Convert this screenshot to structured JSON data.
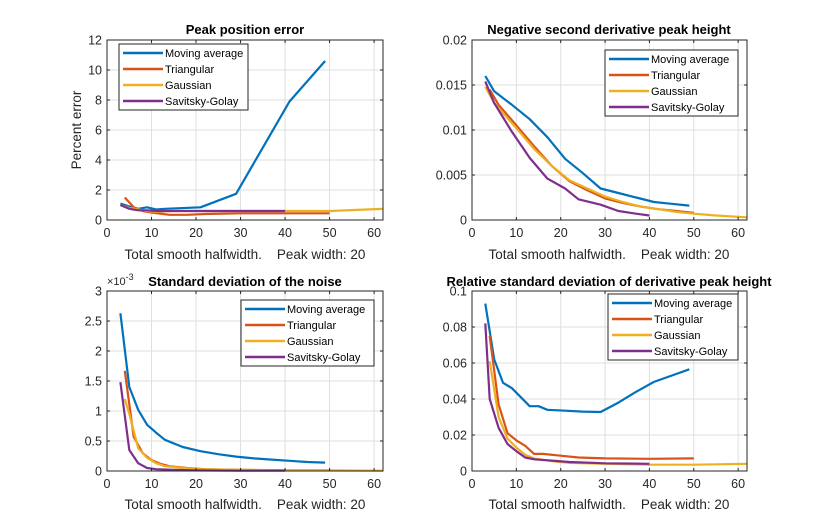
{
  "figure": {
    "series_colors": {
      "Moving average": "#0072BD",
      "Triangular": "#D95319",
      "Gaussian": "#EDB120",
      "Savitsky-Golay": "#7E2F8E"
    }
  },
  "chart_data": [
    {
      "type": "line",
      "title": "Peak position error",
      "xlabel": "Total smooth halfwidth.    Peak width: 20",
      "ylabel": "Percent error",
      "xlim": [
        0,
        62
      ],
      "ylim": [
        0,
        12
      ],
      "xticks": [
        0,
        10,
        20,
        30,
        40,
        50,
        60
      ],
      "yticks": [
        0,
        2,
        4,
        6,
        8,
        10,
        12
      ],
      "ytick_labels": [
        "0",
        "2",
        "4",
        "6",
        "8",
        "10",
        "12"
      ],
      "exponent_label": "",
      "grid": true,
      "legend": [
        "Moving average",
        "Triangular",
        "Gaussian",
        "Savitsky-Golay"
      ],
      "legend_location": "top-left",
      "series": [
        {
          "name": "Moving average",
          "x": [
            3,
            5,
            7,
            9,
            11,
            13,
            21,
            29,
            41,
            49
          ],
          "y": [
            1.1,
            0.9,
            0.75,
            0.85,
            0.7,
            0.75,
            0.85,
            1.75,
            7.9,
            10.6
          ]
        },
        {
          "name": "Triangular",
          "x": [
            4,
            6,
            8,
            10,
            14,
            18,
            22,
            30,
            40,
            50
          ],
          "y": [
            1.5,
            0.85,
            0.6,
            0.5,
            0.35,
            0.35,
            0.4,
            0.45,
            0.45,
            0.45
          ]
        },
        {
          "name": "Gaussian",
          "x": [
            3,
            5,
            7,
            9,
            11,
            15,
            20,
            30,
            40,
            50,
            62
          ],
          "y": [
            1.0,
            0.8,
            0.7,
            0.6,
            0.55,
            0.6,
            0.6,
            0.6,
            0.6,
            0.6,
            0.75
          ]
        },
        {
          "name": "Savitsky-Golay",
          "x": [
            3,
            5,
            7,
            9,
            11,
            15,
            20,
            30,
            40
          ],
          "y": [
            1.0,
            0.75,
            0.65,
            0.65,
            0.6,
            0.6,
            0.6,
            0.6,
            0.6
          ]
        }
      ]
    },
    {
      "type": "line",
      "title": "Negative second derivative peak height",
      "xlabel": "Total smooth halfwidth.    Peak width: 20",
      "ylabel": "",
      "xlim": [
        0,
        62
      ],
      "ylim": [
        0,
        0.02
      ],
      "xticks": [
        0,
        10,
        20,
        30,
        40,
        50,
        60
      ],
      "yticks": [
        0,
        0.005,
        0.01,
        0.015,
        0.02
      ],
      "ytick_labels": [
        "0",
        "0.005",
        "0.01",
        "0.015",
        "0.02"
      ],
      "exponent_label": "",
      "grid": true,
      "legend": [
        "Moving average",
        "Triangular",
        "Gaussian",
        "Savitsky-Golay"
      ],
      "legend_location": "top-right",
      "series": [
        {
          "name": "Moving average",
          "x": [
            3,
            5,
            9,
            13,
            17,
            21,
            25,
            29,
            33,
            37,
            41,
            45,
            49
          ],
          "y": [
            0.016,
            0.0143,
            0.0128,
            0.0112,
            0.0092,
            0.0068,
            0.0052,
            0.0035,
            0.003,
            0.0025,
            0.002,
            0.0018,
            0.0016
          ]
        },
        {
          "name": "Triangular",
          "x": [
            4,
            6,
            10,
            14,
            18,
            22,
            26,
            30,
            34,
            38,
            42,
            46,
            50
          ],
          "y": [
            0.0145,
            0.0128,
            0.0105,
            0.0082,
            0.006,
            0.0043,
            0.0033,
            0.0024,
            0.0019,
            0.0015,
            0.0012,
            0.001,
            0.0008
          ]
        },
        {
          "name": "Gaussian",
          "x": [
            3,
            5,
            10,
            14,
            18,
            22,
            26,
            30,
            34,
            38,
            42,
            46,
            50,
            55,
            62
          ],
          "y": [
            0.0148,
            0.013,
            0.0102,
            0.0079,
            0.006,
            0.0044,
            0.0035,
            0.0026,
            0.002,
            0.0015,
            0.0012,
            0.0009,
            0.0007,
            0.0005,
            0.0003
          ]
        },
        {
          "name": "Savitsky-Golay",
          "x": [
            3,
            5,
            9,
            13,
            17,
            21,
            24,
            29,
            33,
            37,
            40
          ],
          "y": [
            0.0154,
            0.013,
            0.0098,
            0.0069,
            0.0046,
            0.0035,
            0.0023,
            0.0017,
            0.001,
            0.0007,
            0.0005
          ]
        }
      ]
    },
    {
      "type": "line",
      "title": "Standard deviation of the noise",
      "xlabel": "Total smooth halfwidth.    Peak width: 20",
      "ylabel": "",
      "xlim": [
        0,
        62
      ],
      "ylim": [
        0,
        3
      ],
      "xticks": [
        0,
        10,
        20,
        30,
        40,
        50,
        60
      ],
      "yticks": [
        0,
        0.5,
        1,
        1.5,
        2,
        2.5,
        3
      ],
      "ytick_labels": [
        "0",
        "0.5",
        "1",
        "1.5",
        "2",
        "2.5",
        "3"
      ],
      "exponent_label": "×10",
      "exponent_power": "-3",
      "grid": true,
      "legend": [
        "Moving average",
        "Triangular",
        "Gaussian",
        "Savitsky-Golay"
      ],
      "legend_location": "top-right",
      "series": [
        {
          "name": "Moving average",
          "x": [
            3,
            5,
            7,
            9,
            11,
            13,
            17,
            21,
            25,
            29,
            33,
            37,
            41,
            45,
            49
          ],
          "y": [
            2.63,
            1.4,
            1.02,
            0.77,
            0.64,
            0.52,
            0.4,
            0.33,
            0.28,
            0.24,
            0.21,
            0.19,
            0.17,
            0.15,
            0.14
          ]
        },
        {
          "name": "Triangular",
          "x": [
            4,
            6,
            8,
            10,
            12,
            14,
            18,
            22,
            30,
            40,
            50
          ],
          "y": [
            1.67,
            0.57,
            0.3,
            0.18,
            0.12,
            0.08,
            0.05,
            0.03,
            0.02,
            0.01,
            0.01
          ]
        },
        {
          "name": "Gaussian",
          "x": [
            4,
            5,
            7,
            9,
            11,
            13,
            17,
            21,
            30,
            40,
            50,
            62
          ],
          "y": [
            1.2,
            0.95,
            0.38,
            0.22,
            0.13,
            0.08,
            0.05,
            0.03,
            0.02,
            0.01,
            0.01,
            0.005
          ]
        },
        {
          "name": "Savitsky-Golay",
          "x": [
            3,
            5,
            7,
            9,
            11,
            15,
            20,
            30,
            40
          ],
          "y": [
            1.48,
            0.35,
            0.13,
            0.05,
            0.03,
            0.02,
            0.01,
            0.005,
            0.005
          ]
        }
      ]
    },
    {
      "type": "line",
      "title": "Relative standard deviation of derivative peak height",
      "xlabel": "Total smooth halfwidth.    Peak width: 20",
      "ylabel": "",
      "xlim": [
        0,
        62
      ],
      "ylim": [
        0,
        0.1
      ],
      "xticks": [
        0,
        10,
        20,
        30,
        40,
        50,
        60
      ],
      "yticks": [
        0,
        0.02,
        0.04,
        0.06,
        0.08,
        0.1
      ],
      "ytick_labels": [
        "0",
        "0.02",
        "0.04",
        "0.06",
        "0.08",
        "0.1"
      ],
      "exponent_label": "",
      "grid": true,
      "legend": [
        "Moving average",
        "Triangular",
        "Gaussian",
        "Savitsky-Golay"
      ],
      "legend_location": "top-right",
      "series": [
        {
          "name": "Moving average",
          "x": [
            3,
            5,
            7,
            9,
            11,
            13,
            15,
            17,
            21,
            25,
            29,
            33,
            37,
            41,
            45,
            49
          ],
          "y": [
            0.093,
            0.062,
            0.049,
            0.046,
            0.041,
            0.036,
            0.036,
            0.034,
            0.0335,
            0.033,
            0.0328,
            0.038,
            0.044,
            0.0495,
            0.053,
            0.0565
          ]
        },
        {
          "name": "Triangular",
          "x": [
            4,
            6,
            8,
            10,
            12,
            14,
            16,
            20,
            24,
            30,
            40,
            50
          ],
          "y": [
            0.075,
            0.037,
            0.021,
            0.017,
            0.014,
            0.0095,
            0.0095,
            0.0085,
            0.0075,
            0.007,
            0.0068,
            0.007
          ]
        },
        {
          "name": "Gaussian",
          "x": [
            4,
            6,
            8,
            10,
            12,
            14,
            18,
            22,
            30,
            40,
            50,
            62
          ],
          "y": [
            0.061,
            0.03,
            0.018,
            0.013,
            0.009,
            0.007,
            0.0055,
            0.0045,
            0.004,
            0.0035,
            0.0035,
            0.004
          ]
        },
        {
          "name": "Savitsky-Golay",
          "x": [
            3,
            4,
            6,
            8,
            10,
            12,
            14,
            18,
            22,
            30,
            40
          ],
          "y": [
            0.082,
            0.04,
            0.024,
            0.015,
            0.011,
            0.0075,
            0.0065,
            0.0058,
            0.005,
            0.0043,
            0.004
          ]
        }
      ]
    }
  ]
}
